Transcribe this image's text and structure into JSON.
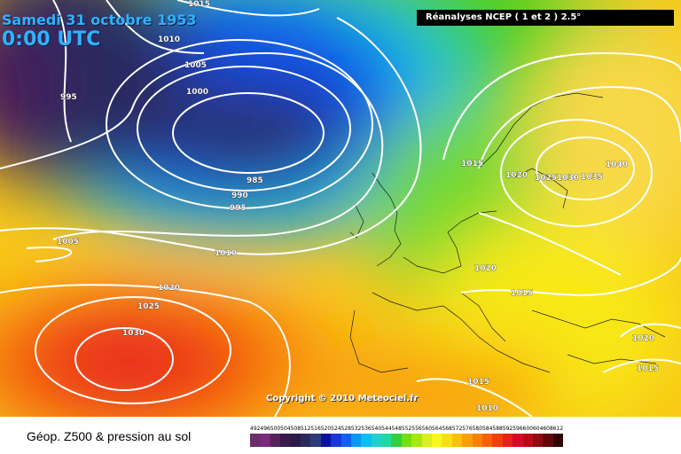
{
  "map": {
    "date_text": "Samedi 31 octobre 1953",
    "time_text": "0:00 UTC",
    "source_text": "Réanalyses NCEP ( 1 et 2 ) 2.5°",
    "copyright_text": "Copyright © 2010 Meteociel.fr",
    "isobar_labels": [
      {
        "id": "isobar-1015-top",
        "value": "1015"
      },
      {
        "id": "isobar-1010-north",
        "value": "1010"
      },
      {
        "id": "isobar-1005-north",
        "value": "1005"
      },
      {
        "id": "isobar-1000-north",
        "value": "1000"
      },
      {
        "id": "isobar-995-northwest",
        "value": "995"
      },
      {
        "id": "isobar-985",
        "value": "985"
      },
      {
        "id": "isobar-990",
        "value": "990"
      },
      {
        "id": "isobar-995",
        "value": "995"
      },
      {
        "id": "isobar-1005-west",
        "value": "1005"
      },
      {
        "id": "isobar-1010-atlantic",
        "value": "1010"
      },
      {
        "id": "isobar-1020-azores",
        "value": "1020"
      },
      {
        "id": "isobar-1025-azores",
        "value": "1025"
      },
      {
        "id": "isobar-1030-azores",
        "value": "1030"
      },
      {
        "id": "isobar-1015-northsea",
        "value": "1015"
      },
      {
        "id": "isobar-1020-scandinavia",
        "value": "1020"
      },
      {
        "id": "isobar-1025-scandinavia",
        "value": "1025"
      },
      {
        "id": "isobar-1030-scandinavia",
        "value": "1030"
      },
      {
        "id": "isobar-1035-scandinavia",
        "value": "1035"
      },
      {
        "id": "isobar-1040-russia",
        "value": "1040"
      },
      {
        "id": "isobar-1020-central",
        "value": "1020"
      },
      {
        "id": "isobar-1015-central",
        "value": "1015"
      },
      {
        "id": "isobar-1020-east",
        "value": "1020"
      },
      {
        "id": "isobar-1015-east",
        "value": "1015"
      },
      {
        "id": "isobar-1015-med",
        "value": "1015"
      },
      {
        "id": "isobar-1010-med",
        "value": "1010"
      }
    ]
  },
  "footer": {
    "title": "Géop. Z500 & pression au sol",
    "legend_values": [
      "492",
      "496",
      "500",
      "504",
      "508",
      "512",
      "516",
      "520",
      "524",
      "528",
      "532",
      "536",
      "540",
      "544",
      "548",
      "552",
      "556",
      "560",
      "564",
      "568",
      "572",
      "576",
      "580",
      "584",
      "588",
      "592",
      "596",
      "600",
      "604",
      "608",
      "612"
    ],
    "legend_colors": [
      "#6a2d6a",
      "#7a2a7a",
      "#55235a",
      "#3a1a4a",
      "#2a1a4a",
      "#2a2a5a",
      "#2a3a7a",
      "#0a10a0",
      "#1838d8",
      "#1060f0",
      "#0898f0",
      "#08c0f0",
      "#20d0d0",
      "#20d8a0",
      "#30d040",
      "#70e010",
      "#a8e810",
      "#d8f020",
      "#f8f818",
      "#f8e010",
      "#f8c008",
      "#f8a008",
      "#f88008",
      "#f86008",
      "#f04008",
      "#e82018",
      "#d80828",
      "#b80818",
      "#900810",
      "#600808",
      "#300404"
    ]
  }
}
